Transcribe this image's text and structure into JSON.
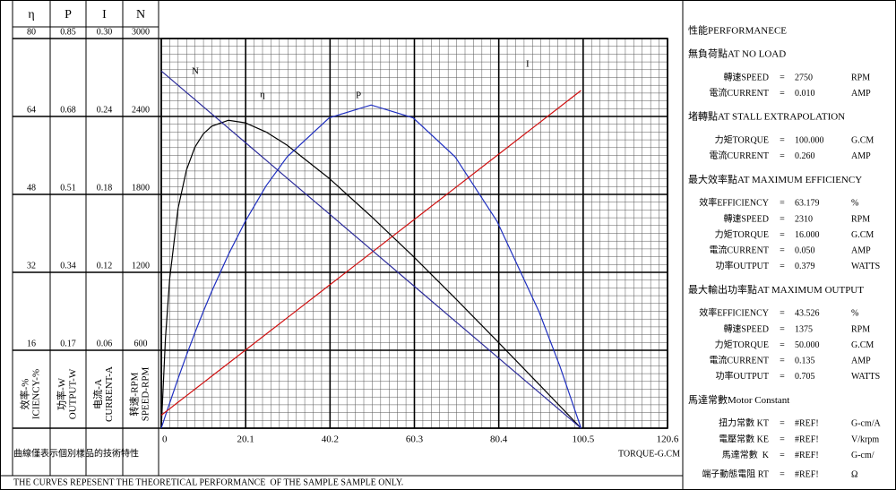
{
  "chart_data": {
    "type": "line",
    "x_label": "TORQUE-G.CM",
    "xlim": [
      0,
      120.6
    ],
    "xticks": [
      0,
      20.1,
      40.2,
      60.3,
      80.4,
      100.5,
      120.6
    ],
    "grid": true,
    "minor_divisions": 10,
    "x": [
      0,
      1,
      2,
      4,
      6,
      8,
      10,
      12,
      16,
      20,
      25,
      30,
      40,
      50,
      60,
      70,
      80,
      90,
      95,
      100
    ],
    "series": [
      {
        "name": "η",
        "color": "#000000",
        "axis_title": [
          "效率-%",
          "ICIENCY-%"
        ],
        "ylim": [
          0,
          80
        ],
        "yticks": [
          16,
          32,
          48,
          64,
          80
        ],
        "values": [
          0,
          18.6,
          30.7,
          45.1,
          53.0,
          57.7,
          60.4,
          62.0,
          63.2,
          62.7,
          60.8,
          58.1,
          51.3,
          43.5,
          35.3,
          26.7,
          17.9,
          9.0,
          4.5,
          0
        ]
      },
      {
        "name": "P",
        "color": "#1f2fc0",
        "axis_title": [
          "功率-W",
          "OUTPUT-W"
        ],
        "ylim": [
          0,
          0.85
        ],
        "yticks": [
          0.17,
          0.34,
          0.51,
          0.68,
          0.85
        ],
        "values": [
          0,
          0.028,
          0.055,
          0.108,
          0.159,
          0.208,
          0.254,
          0.298,
          0.379,
          0.451,
          0.529,
          0.592,
          0.677,
          0.705,
          0.677,
          0.592,
          0.451,
          0.254,
          0.134,
          0
        ]
      },
      {
        "name": "I",
        "color": "#d01010",
        "axis_title": [
          "电流-A",
          "CURRENT-A"
        ],
        "ylim": [
          0,
          0.3
        ],
        "yticks": [
          0.06,
          0.12,
          0.18,
          0.24,
          {
            "value": 0.3,
            "label": "0.30"
          }
        ],
        "values": [
          0.01,
          0.0125,
          0.015,
          0.02,
          0.025,
          0.03,
          0.035,
          0.04,
          0.05,
          0.06,
          0.0725,
          0.085,
          0.11,
          0.135,
          0.16,
          0.185,
          0.21,
          0.235,
          0.2475,
          0.26
        ]
      },
      {
        "name": "N",
        "color": "#2a2a9a",
        "axis_title": [
          "转速-RPM",
          "SPEED-RPM"
        ],
        "ylim": [
          0,
          3000
        ],
        "yticks": [
          600,
          1200,
          1800,
          2400,
          3000
        ],
        "values": [
          2750,
          2722.5,
          2695,
          2640,
          2585,
          2530,
          2475,
          2420,
          2310,
          2200,
          2062.5,
          1925,
          1650,
          1375,
          1100,
          825,
          550,
          275,
          137.5,
          0
        ]
      }
    ]
  },
  "notes": {
    "cn": "曲線僅表示個別樣品的技術特性",
    "en": "THE CURVES REPESENT THE THEORETICAL PERFORMANCE  OF THE SAMPLE SAMPLE ONLY."
  },
  "panel": {
    "title": "性能PERFORMANECE",
    "sections": [
      {
        "heading": "無負荷點AT NO LOAD",
        "rows": [
          [
            "轉速SPEED",
            "=",
            "2750",
            "RPM"
          ],
          [
            "電流CURRENT",
            "=",
            "0.010",
            "AMP"
          ]
        ]
      },
      {
        "heading": "堵轉點AT STALL EXTRAPOLATION",
        "rows": [
          [
            "力矩TORQUE",
            "=",
            "100.000",
            "G.CM"
          ],
          [
            "電流CURRENT",
            "=",
            "0.260",
            "AMP"
          ]
        ]
      },
      {
        "heading": "最大效率點AT MAXIMUM EFFICIENCY",
        "rows": [
          [
            "效率EFFICIENCY",
            "=",
            "63.179",
            "%"
          ],
          [
            "轉速SPEED",
            "=",
            "2310",
            "RPM"
          ],
          [
            "力矩TORQUE",
            "=",
            "16.000",
            "G.CM"
          ],
          [
            "電流CURRENT",
            "=",
            "0.050",
            "AMP"
          ],
          [
            "功率OUTPUT",
            "=",
            "0.379",
            "WATTS"
          ]
        ]
      },
      {
        "heading": "最大輸出功率點AT MAXIMUM OUTPUT",
        "rows": [
          [
            "效率EFFICIENCY",
            "=",
            "43.526",
            "%"
          ],
          [
            "轉速SPEED",
            "=",
            "1375",
            "RPM"
          ],
          [
            "力矩TORQUE",
            "=",
            "50.000",
            "G.CM"
          ],
          [
            "電流CURRENT",
            "=",
            "0.135",
            "AMP"
          ],
          [
            "功率OUTPUT",
            "=",
            "0.705",
            "WATTS"
          ]
        ]
      },
      {
        "heading": "馬達常數Motor Constant",
        "rows": [
          [
            "扭力常數 KT",
            "=",
            "#REF!",
            "G-cm/A"
          ],
          [
            "電壓常數 KE",
            "=",
            "#REF!",
            "V/krpm"
          ],
          [
            "馬達常數  K",
            "=",
            "#REF!",
            "G-cm/"
          ],
          [
            "端子動態電阻 RT",
            "=",
            "#REF!",
            "Ω"
          ]
        ]
      }
    ]
  }
}
